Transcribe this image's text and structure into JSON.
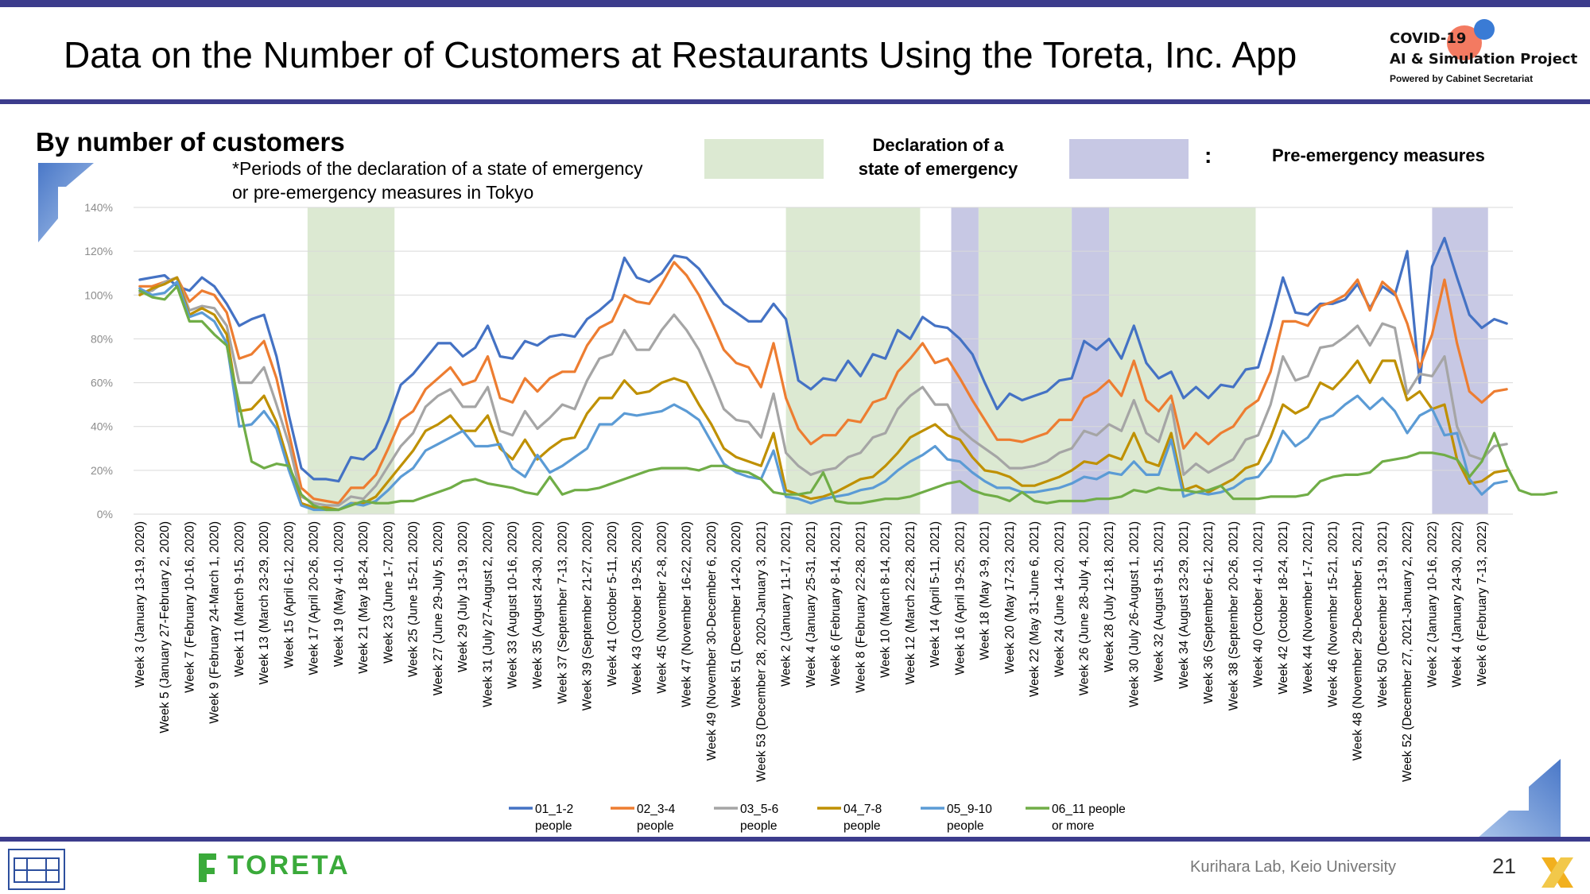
{
  "header": {
    "title": "Data on the Number of Customers at Restaurants Using the Toreta, Inc. App",
    "logo_line1": "COVID-19",
    "logo_line2": "AI & Simulation Project",
    "logo_line3": "Powered by Cabinet Secretariat"
  },
  "subtitle": "By number of customers",
  "note_line1": "*Periods of the declaration of a state of emergency",
  "note_line2": "or pre-emergency measures in Tokyo",
  "legend_top": {
    "green_label_line1": "Declaration of a",
    "green_label_line2": "state of emergency",
    "colon": ":",
    "purple_label": "Pre-emergency measures"
  },
  "footer": {
    "brand": "TORETA",
    "lab": "Kurihara Lab, Keio University",
    "page": "21"
  },
  "colors": {
    "frame": "#3c3c8c",
    "emergency": "#dce9d2",
    "pre_emergency": "#c7c8e4"
  },
  "chart_data": {
    "type": "line",
    "ylim": [
      0,
      140
    ],
    "yticks": [
      "0%",
      "20%",
      "40%",
      "60%",
      "80%",
      "100%",
      "120%",
      "140%"
    ],
    "grid": true,
    "legend_position": "bottom",
    "x_labels_shown": [
      "Week 3 (January 13-19, 2020)",
      "Week 5 (January 27-February 2, 2020)",
      "Week 7 (February 10-16, 2020)",
      "Week 9 (February 24-March 1, 2020)",
      "Week 11 (March 9-15, 2020)",
      "Week 13 (March 23-29, 2020)",
      "Week 15 (April 6-12, 2020)",
      "Week 17 (April 20-26, 2020)",
      "Week 19 (May 4-10, 2020)",
      "Week 21 (May 18-24, 2020)",
      "Week 23 (June 1-7, 2020)",
      "Week 25 (June 15-21, 2020)",
      "Week 27 (June 29-July 5, 2020)",
      "Week 29 (July 13-19, 2020)",
      "Week 31 (July 27-August 2, 2020)",
      "Week 33 (August 10-16, 2020)",
      "Week 35 (August 24-30, 2020)",
      "Week 37 (September 7-13, 2020)",
      "Week 39 (September 21-27, 2020)",
      "Week 41 (October 5-11, 2020)",
      "Week 43 (October 19-25, 2020)",
      "Week 45 (November 2-8, 2020)",
      "Week 47 (November 16-22, 2020)",
      "Week 49 (November 30-December 6, 2020)",
      "Week 51 (December 14-20, 2020)",
      "Week 53 (December 28, 2020-January 3, 2021)",
      "Week 2 (January 11-17, 2021)",
      "Week 4 (January 25-31, 2021)",
      "Week 6 (February 8-14, 2021)",
      "Week 8 (February 22-28, 2021)",
      "Week 10 (March 8-14, 2021)",
      "Week 12 (March 22-28, 2021)",
      "Week 14 (April 5-11, 2021)",
      "Week 16 (April 19-25, 2021)",
      "Week 18 (May 3-9, 2021)",
      "Week 20 (May 17-23, 2021)",
      "Week 22 (May 31-June 6, 2021)",
      "Week 24 (June 14-20, 2021)",
      "Week 26 (June 28-July 4, 2021)",
      "Week 28 (July 12-18, 2021)",
      "Week 30 (July 26-August 1, 2021)",
      "Week 32 (August 9-15, 2021)",
      "Week 34 (August 23-29, 2021)",
      "Week 36 (September 6-12, 2021)",
      "Week 38 (September 20-26, 2021)",
      "Week 40 (October 4-10, 2021)",
      "Week 42 (October 18-24, 2021)",
      "Week 44 (November 1-7, 2021)",
      "Week 46 (November 15-21, 2021)",
      "Week 48 (November 29-December 5, 2021)",
      "Week 50 (December 13-19, 2021)",
      "Week 52 (December 27, 2021-January 2, 2022)",
      "Week 2 (January 10-16, 2022)",
      "Week 4 (January 24-30, 2022)",
      "Week 6 (February 7-13, 2022)"
    ],
    "bands": [
      {
        "type": "emergency",
        "from": 14.0,
        "to": 21.0
      },
      {
        "type": "emergency",
        "from": 52.5,
        "to": 63.3
      },
      {
        "type": "pre_emergency",
        "from": 65.8,
        "to": 68.0
      },
      {
        "type": "emergency",
        "from": 68.0,
        "to": 75.5
      },
      {
        "type": "pre_emergency",
        "from": 75.5,
        "to": 78.5
      },
      {
        "type": "emergency",
        "from": 78.5,
        "to": 90.3
      },
      {
        "type": "pre_emergency",
        "from": 104.5,
        "to": 109.0
      }
    ],
    "series": [
      {
        "name": "01_1-2 people",
        "color": "#4472c4",
        "values": [
          107,
          108,
          109,
          104,
          102,
          108,
          104,
          96,
          86,
          89,
          91,
          72,
          45,
          21,
          16,
          16,
          15,
          26,
          25,
          30,
          43,
          59,
          64,
          71,
          78,
          78,
          72,
          76,
          86,
          72,
          71,
          79,
          77,
          81,
          82,
          81,
          89,
          93,
          98,
          117,
          108,
          106,
          110,
          118,
          117,
          112,
          104,
          96,
          92,
          88,
          88,
          96,
          89,
          61,
          57,
          62,
          61,
          70,
          63,
          73,
          71,
          84,
          80,
          90,
          86,
          85,
          80,
          73,
          60,
          48,
          55,
          52,
          54,
          56,
          61,
          62,
          79,
          75,
          80,
          71,
          86,
          69,
          62,
          65,
          53,
          58,
          53,
          59,
          58,
          66,
          67,
          86,
          108,
          92,
          91,
          96,
          96,
          98,
          105,
          94,
          104,
          100,
          120,
          60,
          113,
          126,
          108,
          91,
          85,
          89,
          87
        ]
      },
      {
        "name": "02_3-4 people",
        "color": "#ed7d31",
        "values": [
          104,
          104,
          106,
          108,
          97,
          102,
          100,
          92,
          71,
          73,
          79,
          62,
          37,
          12,
          7,
          6,
          5,
          12,
          12,
          18,
          30,
          43,
          47,
          57,
          62,
          67,
          59,
          61,
          72,
          53,
          51,
          62,
          56,
          62,
          65,
          65,
          77,
          85,
          88,
          100,
          97,
          96,
          105,
          115,
          109,
          100,
          88,
          75,
          69,
          67,
          58,
          78,
          53,
          39,
          32,
          36,
          36,
          43,
          42,
          51,
          53,
          65,
          71,
          78,
          69,
          71,
          62,
          52,
          43,
          34,
          34,
          33,
          35,
          37,
          43,
          43,
          53,
          56,
          61,
          54,
          70,
          52,
          47,
          54,
          30,
          37,
          32,
          37,
          40,
          48,
          52,
          65,
          88,
          88,
          86,
          95,
          97,
          100,
          107,
          93,
          106,
          101,
          87,
          67,
          82,
          107,
          78,
          56,
          51,
          56,
          57
        ]
      },
      {
        "name": "03_5-6 people",
        "color": "#a5a5a5",
        "values": [
          101,
          102,
          106,
          108,
          93,
          95,
          94,
          86,
          60,
          60,
          67,
          50,
          32,
          8,
          5,
          4,
          4,
          8,
          7,
          13,
          22,
          31,
          37,
          49,
          54,
          57,
          49,
          49,
          58,
          38,
          36,
          47,
          39,
          44,
          50,
          48,
          61,
          71,
          73,
          84,
          75,
          75,
          84,
          91,
          84,
          75,
          62,
          48,
          43,
          42,
          35,
          55,
          28,
          22,
          18,
          20,
          21,
          26,
          28,
          35,
          37,
          48,
          54,
          58,
          50,
          50,
          39,
          34,
          30,
          26,
          21,
          21,
          22,
          24,
          28,
          30,
          38,
          36,
          41,
          38,
          52,
          37,
          33,
          50,
          18,
          23,
          19,
          22,
          25,
          34,
          36,
          50,
          72,
          61,
          63,
          76,
          77,
          81,
          86,
          77,
          87,
          85,
          55,
          64,
          63,
          72,
          40,
          27,
          25,
          31,
          32
        ]
      },
      {
        "name": "04_7-8 people",
        "color": "#bf9000",
        "values": [
          100,
          103,
          105,
          108,
          91,
          94,
          91,
          82,
          47,
          48,
          54,
          42,
          23,
          5,
          3,
          3,
          2,
          5,
          5,
          8,
          15,
          22,
          29,
          38,
          41,
          45,
          38,
          38,
          45,
          30,
          25,
          34,
          25,
          30,
          34,
          35,
          46,
          53,
          53,
          61,
          55,
          56,
          60,
          62,
          60,
          50,
          41,
          30,
          26,
          24,
          22,
          37,
          11,
          9,
          7,
          8,
          10,
          13,
          16,
          17,
          22,
          28,
          35,
          38,
          41,
          36,
          34,
          26,
          20,
          19,
          17,
          13,
          13,
          15,
          17,
          20,
          24,
          23,
          27,
          25,
          37,
          24,
          22,
          37,
          11,
          13,
          10,
          13,
          16,
          21,
          23,
          35,
          50,
          46,
          49,
          60,
          57,
          63,
          70,
          60,
          70,
          70,
          52,
          56,
          48,
          50,
          25,
          14,
          15,
          19,
          20
        ]
      },
      {
        "name": "05_9-10 people",
        "color": "#5b9bd5",
        "values": [
          103,
          100,
          101,
          106,
          90,
          92,
          88,
          78,
          40,
          41,
          47,
          39,
          20,
          4,
          2,
          2,
          2,
          5,
          4,
          6,
          11,
          17,
          21,
          29,
          32,
          35,
          38,
          31,
          31,
          32,
          21,
          17,
          27,
          19,
          22,
          26,
          30,
          41,
          41,
          46,
          45,
          46,
          47,
          50,
          47,
          43,
          33,
          23,
          19,
          17,
          16,
          29,
          8,
          7,
          5,
          7,
          8,
          9,
          11,
          12,
          15,
          20,
          24,
          27,
          31,
          25,
          24,
          19,
          15,
          12,
          12,
          10,
          10,
          11,
          12,
          14,
          17,
          16,
          19,
          18,
          24,
          18,
          18,
          34,
          8,
          10,
          9,
          10,
          12,
          16,
          17,
          24,
          38,
          31,
          35,
          43,
          45,
          50,
          54,
          48,
          53,
          47,
          37,
          45,
          48,
          36,
          37,
          16,
          9,
          14,
          15
        ]
      },
      {
        "name": "06_11 people or more",
        "color": "#70ad47",
        "values": [
          102,
          99,
          98,
          104,
          88,
          88,
          82,
          77,
          50,
          24,
          21,
          23,
          22,
          9,
          4,
          2,
          2,
          4,
          6,
          5,
          5,
          6,
          6,
          8,
          10,
          12,
          15,
          16,
          14,
          13,
          12,
          10,
          9,
          17,
          9,
          11,
          11,
          12,
          14,
          16,
          18,
          20,
          21,
          21,
          21,
          20,
          22,
          22,
          20,
          19,
          16,
          10,
          9,
          9,
          10,
          19,
          6,
          5,
          5,
          6,
          7,
          7,
          8,
          10,
          12,
          14,
          15,
          11,
          9,
          8,
          6,
          10,
          6,
          5,
          6,
          6,
          6,
          7,
          7,
          8,
          11,
          10,
          12,
          11,
          11,
          10,
          11,
          13,
          7,
          7,
          7,
          8,
          8,
          8,
          9,
          15,
          17,
          18,
          18,
          19,
          24,
          25,
          26,
          28,
          28,
          27,
          25,
          17,
          24,
          37,
          22,
          11,
          9,
          9,
          10
        ]
      }
    ]
  }
}
